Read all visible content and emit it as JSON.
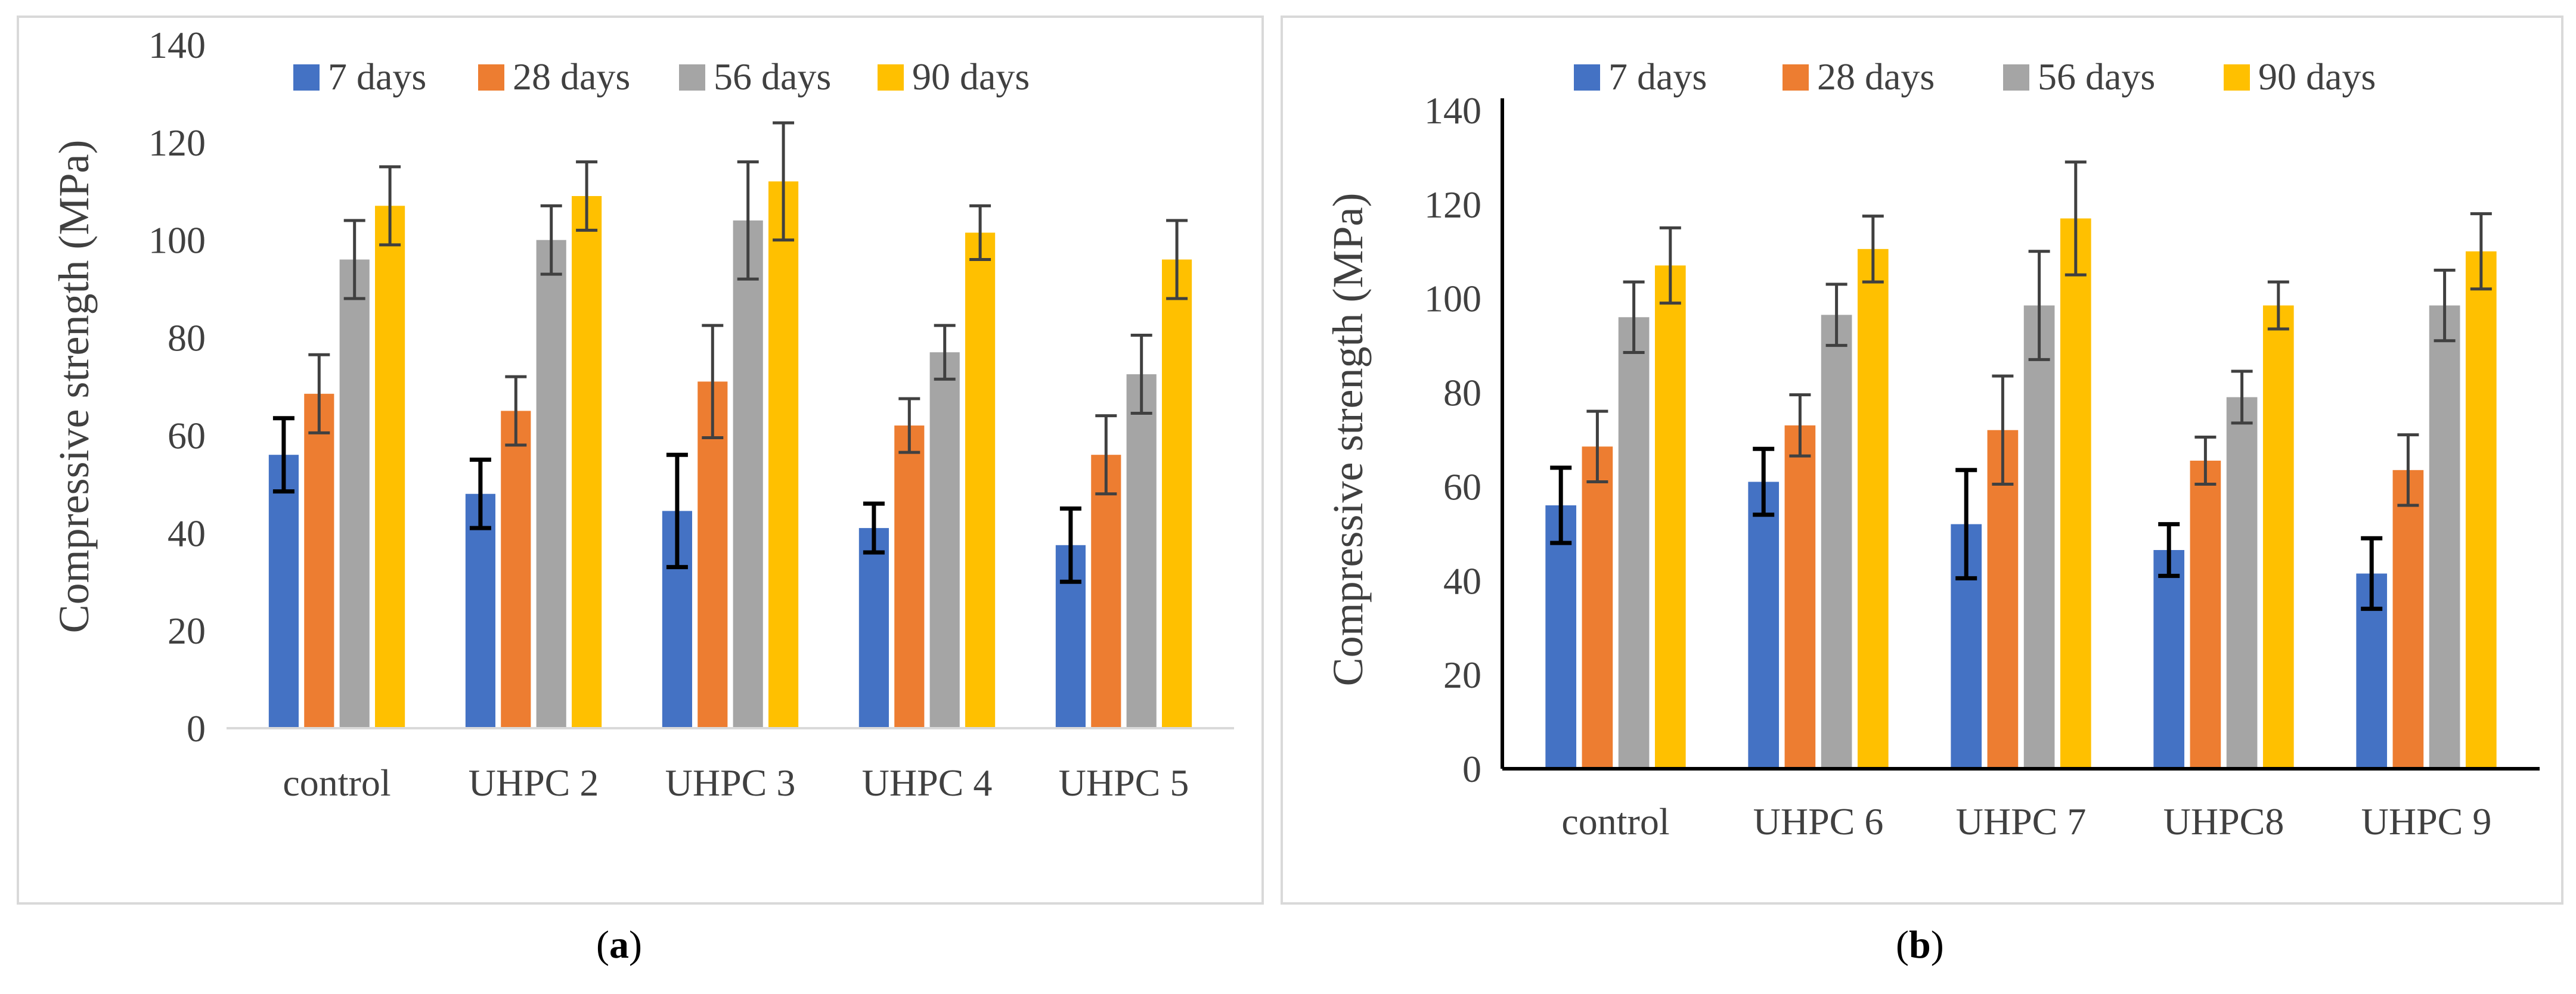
{
  "colors": {
    "7 days": "#4472C4",
    "28 days": "#ED7D31",
    "56 days": "#A5A5A5",
    "90 days": "#FFC000",
    "frame": "#d9d9d9",
    "axis": "#000000",
    "errorbar": "#404040"
  },
  "chart_data": [
    {
      "id": "a",
      "type": "bar",
      "caption_letter": "a",
      "ylabel": "Compressive strength (MPa)",
      "xlabel": "",
      "ylim": [
        0,
        140
      ],
      "yticks": [
        0,
        20,
        40,
        60,
        80,
        100,
        120,
        140
      ],
      "grid": false,
      "legend": "top",
      "categories": [
        "control",
        "UHPC 2",
        "UHPC 3",
        "UHPC 4",
        "UHPC 5"
      ],
      "series": [
        {
          "name": "7 days",
          "values": [
            56,
            48,
            44.5,
            41,
            37.5
          ],
          "errors": [
            7.5,
            7,
            11.5,
            5,
            7.5
          ]
        },
        {
          "name": "28 days",
          "values": [
            68.5,
            65,
            71,
            62,
            56
          ],
          "errors": [
            8,
            7,
            11.5,
            5.5,
            8
          ]
        },
        {
          "name": "56 days",
          "values": [
            96,
            100,
            104,
            77,
            72.5
          ],
          "errors": [
            8,
            7,
            12,
            5.5,
            8
          ]
        },
        {
          "name": "90 days",
          "values": [
            107,
            109,
            112,
            101.5,
            96
          ],
          "errors": [
            8,
            7,
            12,
            5.5,
            8
          ]
        }
      ]
    },
    {
      "id": "b",
      "type": "bar",
      "caption_letter": "b",
      "ylabel": "Compressive strength (MPa)",
      "xlabel": "",
      "ylim": [
        0,
        140
      ],
      "yticks": [
        0,
        20,
        40,
        60,
        80,
        100,
        120,
        140
      ],
      "grid": false,
      "legend": "top",
      "categories": [
        "control",
        "UHPC 6",
        "UHPC 7",
        "UHPC8",
        "UHPC 9"
      ],
      "series": [
        {
          "name": "7 days",
          "values": [
            56,
            61,
            52,
            46.5,
            41.5
          ],
          "errors": [
            8,
            7,
            11.5,
            5.5,
            7.5
          ]
        },
        {
          "name": "28 days",
          "values": [
            68.5,
            73,
            72,
            65.5,
            63.5
          ],
          "errors": [
            7.5,
            6.5,
            11.5,
            5,
            7.5
          ]
        },
        {
          "name": "56 days",
          "values": [
            96,
            96.5,
            98.5,
            79,
            98.5
          ],
          "errors": [
            7.5,
            6.5,
            11.5,
            5.5,
            7.5
          ]
        },
        {
          "name": "90 days",
          "values": [
            107,
            110.5,
            117,
            98.5,
            110
          ],
          "errors": [
            8,
            7,
            12,
            5,
            8
          ]
        }
      ]
    }
  ]
}
